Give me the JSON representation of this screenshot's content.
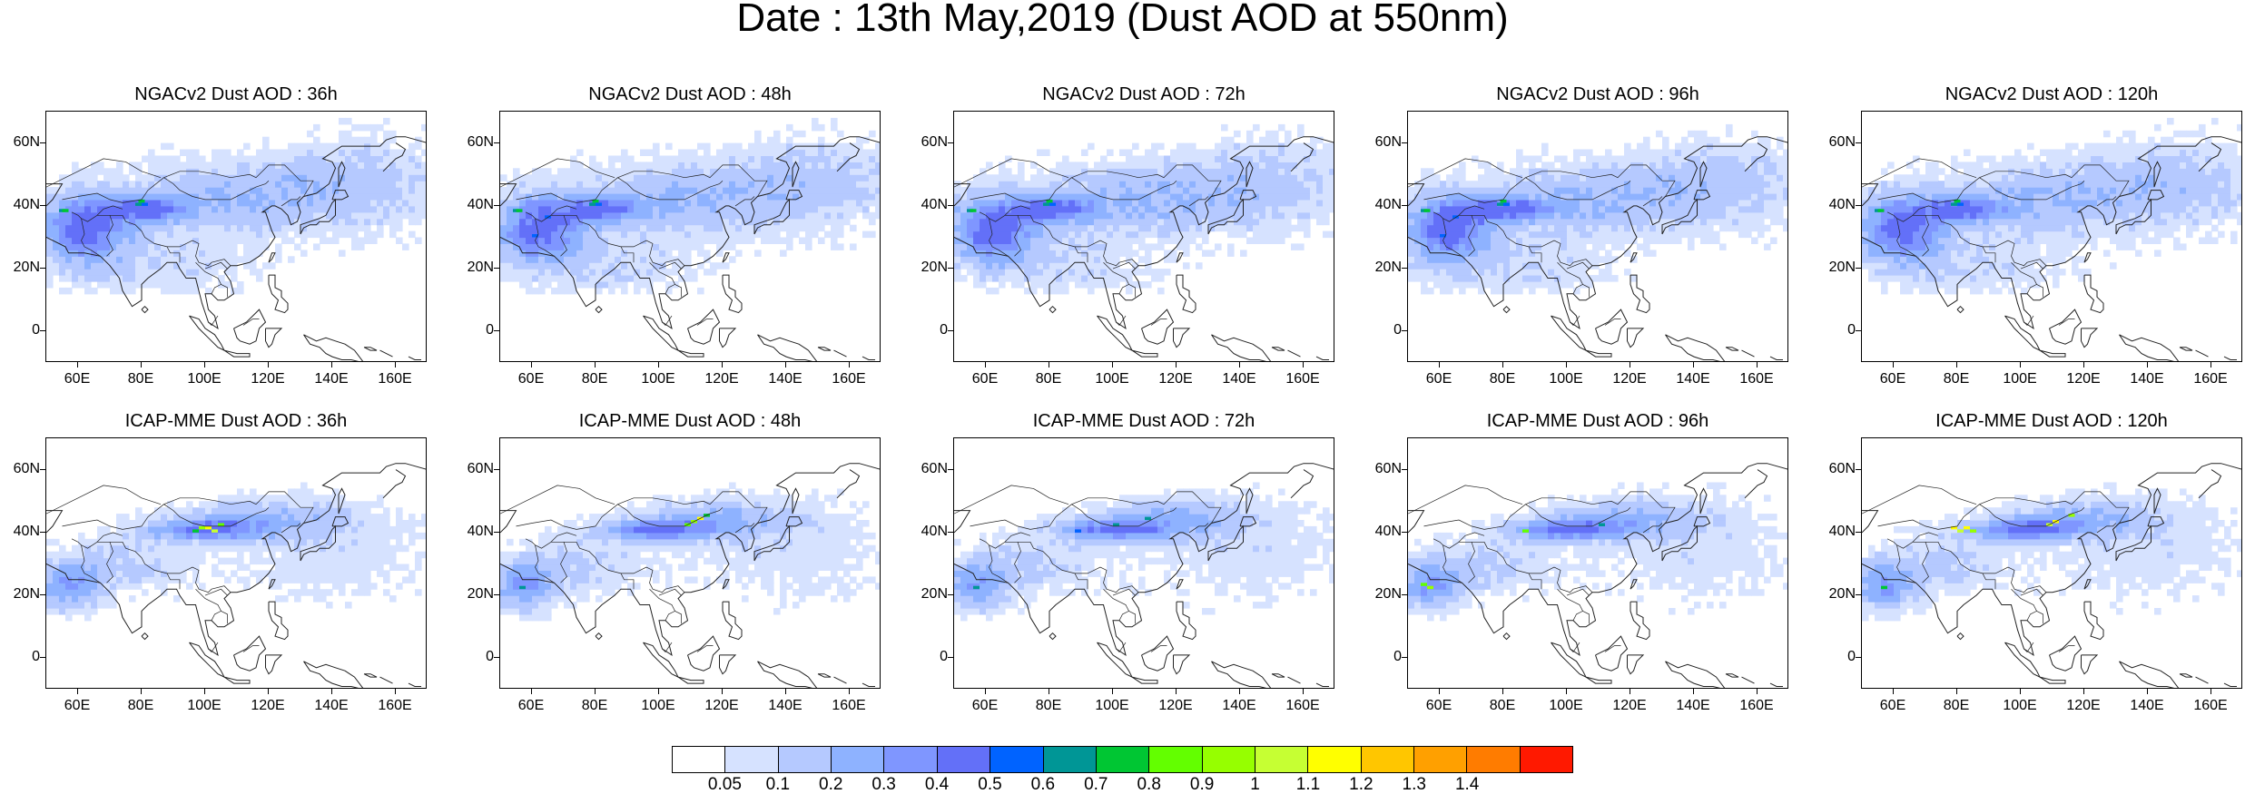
{
  "title": "Date : 13th May,2019 (Dust AOD at 550nm)",
  "panels": [
    {
      "title": "NGACv2 Dust AOD : 36h"
    },
    {
      "title": "NGACv2 Dust AOD : 48h"
    },
    {
      "title": "NGACv2 Dust AOD : 72h"
    },
    {
      "title": "NGACv2 Dust AOD : 96h"
    },
    {
      "title": "NGACv2 Dust AOD : 120h"
    },
    {
      "title": "ICAP-MME Dust AOD : 36h"
    },
    {
      "title": "ICAP-MME Dust AOD : 48h"
    },
    {
      "title": "ICAP-MME Dust AOD : 72h"
    },
    {
      "title": "ICAP-MME Dust AOD : 96h"
    },
    {
      "title": "ICAP-MME Dust AOD : 120h"
    }
  ],
  "lat_ticks": [
    "60N",
    "40N",
    "20N",
    "0"
  ],
  "lon_ticks": [
    "60E",
    "80E",
    "100E",
    "120E",
    "140E",
    "160E"
  ],
  "colorbar": {
    "labels": [
      "0.05",
      "0.1",
      "0.2",
      "0.3",
      "0.4",
      "0.5",
      "0.6",
      "0.7",
      "0.8",
      "0.9",
      "1",
      "1.1",
      "1.2",
      "1.3",
      "1.4"
    ],
    "colors": [
      "#ffffff",
      "#d6e2ff",
      "#b5c9ff",
      "#8eb2ff",
      "#7f96ff",
      "#6370f8",
      "#0063ff",
      "#009696",
      "#00c633",
      "#63ff00",
      "#96ff00",
      "#c6ff33",
      "#ffff00",
      "#ffc600",
      "#ffa000",
      "#ff7c00",
      "#ff1900"
    ]
  }
}
